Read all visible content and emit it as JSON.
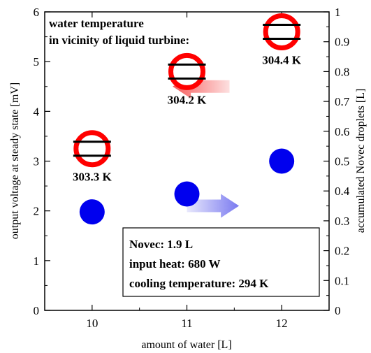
{
  "chart_data": {
    "type": "scatter",
    "xlabel": "amount of water [L]",
    "ylabel_left": "output voltage at steady state [mV]",
    "ylabel_right": "accumulated Novec droplets [L]",
    "xlim": [
      9.5,
      12.5
    ],
    "ylim_left": [
      0,
      6
    ],
    "ylim_right": [
      0,
      1
    ],
    "x_ticks": [
      10,
      11,
      12
    ],
    "x_tick_labels": [
      "10",
      "11",
      "12"
    ],
    "y_left_ticks": [
      0,
      1,
      2,
      3,
      4,
      5,
      6
    ],
    "y_left_tick_labels": [
      "0",
      "1",
      "2",
      "3",
      "4",
      "5",
      "6"
    ],
    "y_right_ticks": [
      0,
      0.1,
      0.2,
      0.3,
      0.4,
      0.5,
      0.6,
      0.7,
      0.8,
      0.9,
      1
    ],
    "y_right_tick_labels": [
      "0",
      "0.1",
      "0.2",
      "0.3",
      "0.4",
      "0.5",
      "0.6",
      "0.7",
      "0.8",
      "0.9",
      "1"
    ],
    "grid": false,
    "series": [
      {
        "marker": "open-circle-double-bar",
        "axis": "left",
        "color": "#ff0000",
        "x": [
          10,
          11,
          12
        ],
        "y": [
          3.25,
          4.8,
          5.6
        ],
        "labels": [
          "303.3 K",
          "304.2 K",
          "304.4 K"
        ]
      },
      {
        "marker": "filled-circle",
        "axis": "right",
        "color": "#0000ee",
        "x": [
          10,
          11,
          12
        ],
        "y": [
          0.33,
          0.39,
          0.5
        ]
      }
    ],
    "annotation": {
      "line1": "water temperature",
      "line2": "in vicinity of liquid turbine:"
    },
    "arrows": [
      {
        "direction": "left",
        "color": "#f88080",
        "x_from": 11.45,
        "x_to": 10.85,
        "y": 4.5
      },
      {
        "direction": "right",
        "color": "#9090f0",
        "x_from": 11.0,
        "x_to": 11.55,
        "y": 2.1
      }
    ],
    "info_box": {
      "lines": [
        "Novec: 1.9 L",
        "input heat: 680 W",
        "cooling temperature: 294 K"
      ]
    }
  }
}
